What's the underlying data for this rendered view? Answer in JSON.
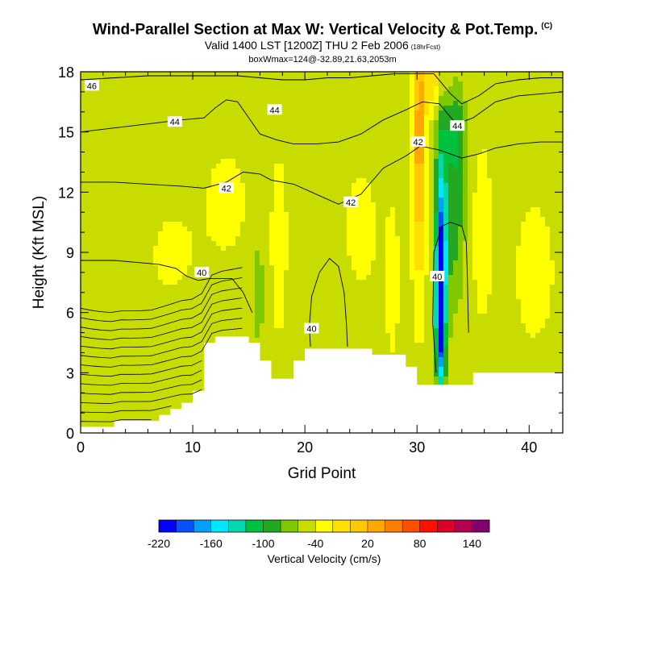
{
  "header": {
    "title": "Wind-Parallel Section at Max W: Vertical Velocity & Pot.Temp.",
    "copyright": "(C)",
    "subtitle": "Valid 1400 LST [1200Z] THU 2 Feb 2006",
    "forecast_tag": "(18hrFcst)",
    "box_info": "boxWmax=124@-32.89,21.63,2053m"
  },
  "colors": {
    "terrain": "#ffffff",
    "frame": "#000000",
    "contour": "#000000"
  },
  "chart_data": {
    "type": "heatmap",
    "xlabel": "Grid Point",
    "ylabel": "Height (Kft MSL)",
    "xlim": [
      0,
      43
    ],
    "ylim": [
      0,
      18
    ],
    "x_ticks": [
      0,
      10,
      20,
      30,
      40
    ],
    "y_ticks": [
      0,
      3,
      6,
      9,
      12,
      15,
      18
    ],
    "fill_variable": "Vertical Velocity (cm/s)",
    "contour_variable": "Potential Temperature",
    "colorbar": {
      "label": "Vertical Velocity (cm/s)",
      "tick_labels": [
        "-220",
        "-160",
        "-100",
        "-40",
        "20",
        "80",
        "140"
      ],
      "colors": [
        "#0000ff",
        "#0a50ff",
        "#00a0ff",
        "#00e6ff",
        "#00d8b0",
        "#00c040",
        "#22a822",
        "#80c800",
        "#c8dc00",
        "#ffff00",
        "#ffe000",
        "#ffc800",
        "#ffa800",
        "#ff8000",
        "#ff5000",
        "#ff1000",
        "#dc0028",
        "#b40050",
        "#82006e"
      ]
    },
    "background_value": 10,
    "terrain_top_kft": [
      [
        0,
        0.3
      ],
      [
        1,
        0.3
      ],
      [
        2,
        0.3
      ],
      [
        3,
        0.6
      ],
      [
        4,
        0.6
      ],
      [
        5,
        0.6
      ],
      [
        6,
        0.6
      ],
      [
        7,
        0.9
      ],
      [
        8,
        1.2
      ],
      [
        9,
        1.5
      ],
      [
        10,
        2.1
      ],
      [
        11,
        4.5
      ],
      [
        12,
        4.8
      ],
      [
        13,
        4.8
      ],
      [
        14,
        4.8
      ],
      [
        15,
        4.5
      ],
      [
        16,
        3.6
      ],
      [
        17,
        2.7
      ],
      [
        18,
        2.7
      ],
      [
        19,
        3.6
      ],
      [
        20,
        4.2
      ],
      [
        21,
        4.2
      ],
      [
        22,
        4.2
      ],
      [
        23,
        4.2
      ],
      [
        24,
        4.2
      ],
      [
        25,
        4.2
      ],
      [
        26,
        3.9
      ],
      [
        27,
        3.9
      ],
      [
        28,
        3.9
      ],
      [
        29,
        3.3
      ],
      [
        30,
        2.4
      ],
      [
        31,
        2.4
      ],
      [
        32,
        2.4
      ],
      [
        33,
        2.4
      ],
      [
        34,
        2.4
      ],
      [
        35,
        3.0
      ],
      [
        36,
        3.0
      ],
      [
        37,
        3.0
      ],
      [
        38,
        3.0
      ],
      [
        39,
        3.0
      ],
      [
        40,
        3.0
      ],
      [
        41,
        3.0
      ],
      [
        42,
        3.0
      ],
      [
        43,
        3.0
      ]
    ],
    "features": [
      {
        "name": "updraft-core",
        "x": 30.2,
        "y": 14.5,
        "sx": 0.55,
        "sy": 6.5,
        "value": 130
      },
      {
        "name": "updraft-upper",
        "x": 31.5,
        "y": 17.5,
        "sx": 1.0,
        "sy": 1.5,
        "value": 70
      },
      {
        "name": "downdraft-core",
        "x": 32.1,
        "y": 6.5,
        "sx": 0.35,
        "sy": 3.5,
        "value": -250
      },
      {
        "name": "downdraft-mid",
        "x": 32.2,
        "y": 9.5,
        "sx": 0.55,
        "sy": 6.5,
        "value": -140
      },
      {
        "name": "downdraft-east",
        "x": 33.4,
        "y": 11.5,
        "sx": 0.9,
        "sy": 5.0,
        "value": -60
      },
      {
        "name": "downdraft-top",
        "x": 33.5,
        "y": 15.0,
        "sx": 1.0,
        "sy": 1.8,
        "value": -40
      },
      {
        "name": "ascent-east",
        "x": 35.8,
        "y": 10.0,
        "sx": 1.0,
        "sy": 5.0,
        "value": 30
      },
      {
        "name": "west-green",
        "x": 15.9,
        "y": 7.0,
        "sx": 0.35,
        "sy": 2.5,
        "value": -45
      },
      {
        "name": "west-orange",
        "x": 17.7,
        "y": 9.5,
        "sx": 0.6,
        "sy": 4.0,
        "value": 45
      },
      {
        "name": "mid-orange",
        "x": 27.8,
        "y": 7.5,
        "sx": 0.6,
        "sy": 3.5,
        "value": 35
      },
      {
        "name": "light-orange-1",
        "x": 8.0,
        "y": 9.0,
        "sx": 2.5,
        "sy": 2.5,
        "value": 25
      },
      {
        "name": "light-orange-2",
        "x": 13.0,
        "y": 11.5,
        "sx": 2.5,
        "sy": 3.5,
        "value": 25
      },
      {
        "name": "light-orange-3",
        "x": 25.0,
        "y": 10.0,
        "sx": 2.0,
        "sy": 4.5,
        "value": 25
      },
      {
        "name": "light-orange-4",
        "x": 40.5,
        "y": 8.0,
        "sx": 2.5,
        "sy": 5.0,
        "value": 25
      },
      {
        "name": "pale-yellow-1",
        "x": 22.0,
        "y": 6.5,
        "sx": 2.5,
        "sy": 1.5,
        "value": 0
      },
      {
        "name": "pale-yellow-2",
        "x": 20.0,
        "y": 14.5,
        "sx": 3.0,
        "sy": 1.5,
        "value": 5
      },
      {
        "name": "pale-yellow-3",
        "x": 4.0,
        "y": 11.0,
        "sx": 2.5,
        "sy": 3.0,
        "value": 5
      }
    ],
    "isentropes": [
      {
        "level": 40,
        "x": [
          0,
          3,
          5,
          7,
          8.5,
          9.5,
          10.5,
          11.5,
          12.5,
          13.5,
          14.5,
          15.3
        ],
        "y": [
          8.6,
          8.6,
          8.5,
          8.4,
          8.2,
          7.8,
          7.6,
          7.7,
          7.7,
          7.7,
          7.0,
          6.0
        ]
      },
      {
        "level": 40,
        "x": [
          20.5,
          20.4,
          20.6,
          21.3,
          22.2,
          23.0,
          23.5,
          23.7,
          23.8
        ],
        "y": [
          4.3,
          5.3,
          6.8,
          8.0,
          8.7,
          8.3,
          7.0,
          5.5,
          4.3
        ]
      },
      {
        "level": 40,
        "x": [
          31.7,
          31.4,
          31.5,
          32.2,
          33.0,
          34.0,
          34.4,
          34.5,
          34.6
        ],
        "y": [
          3.0,
          5.5,
          9.0,
          10.3,
          10.5,
          10.3,
          9.5,
          7.5,
          5.0
        ]
      },
      {
        "level": 42,
        "x": [
          0,
          3,
          6,
          9,
          11,
          13,
          14.5,
          16,
          17,
          19,
          21,
          23,
          25,
          27,
          29,
          30.3,
          32,
          34,
          35.5,
          37,
          39,
          41,
          43
        ],
        "y": [
          12.5,
          12.5,
          12.4,
          12.3,
          12.2,
          12.5,
          13.0,
          12.9,
          12.6,
          12.4,
          11.9,
          11.4,
          11.9,
          13.2,
          13.8,
          14.3,
          14.1,
          13.7,
          13.9,
          14.2,
          14.4,
          14.5,
          14.5
        ]
      },
      {
        "level": 44,
        "x": [
          0,
          3,
          6,
          9,
          11,
          12,
          13,
          14,
          15,
          16,
          17.5,
          19,
          21,
          23,
          25,
          27,
          29,
          30.5,
          32,
          33.5,
          35,
          37,
          39,
          41,
          43
        ],
        "y": [
          15.0,
          15.2,
          15.4,
          15.6,
          15.7,
          16.2,
          16.6,
          16.5,
          15.7,
          14.9,
          14.6,
          14.4,
          14.4,
          14.5,
          14.9,
          15.6,
          16.1,
          16.5,
          16.4,
          15.4,
          15.7,
          16.5,
          16.8,
          16.9,
          17.0
        ]
      },
      {
        "level": 46,
        "x": [
          0,
          3,
          6,
          9,
          12,
          14,
          16,
          18,
          20,
          22,
          24,
          26,
          28,
          30,
          31.5,
          33,
          34,
          35.5,
          37,
          39,
          41,
          43
        ],
        "y": [
          17.6,
          17.7,
          17.8,
          17.8,
          17.8,
          17.8,
          17.7,
          17.6,
          17.6,
          17.7,
          17.7,
          17.8,
          17.9,
          17.9,
          17.9,
          16.9,
          16.4,
          16.8,
          17.4,
          17.6,
          17.7,
          17.7
        ]
      }
    ],
    "contour_labels": [
      {
        "text": "46",
        "x": 1.0,
        "y": 17.3
      },
      {
        "text": "44",
        "x": 8.4,
        "y": 15.5
      },
      {
        "text": "44",
        "x": 17.3,
        "y": 16.1
      },
      {
        "text": "44",
        "x": 33.6,
        "y": 15.3
      },
      {
        "text": "42",
        "x": 13.0,
        "y": 12.2
      },
      {
        "text": "42",
        "x": 24.1,
        "y": 11.5
      },
      {
        "text": "42",
        "x": 30.1,
        "y": 14.5
      },
      {
        "text": "40",
        "x": 10.8,
        "y": 8.0
      },
      {
        "text": "40",
        "x": 20.6,
        "y": 5.2
      },
      {
        "text": "40",
        "x": 31.8,
        "y": 7.8
      }
    ]
  }
}
